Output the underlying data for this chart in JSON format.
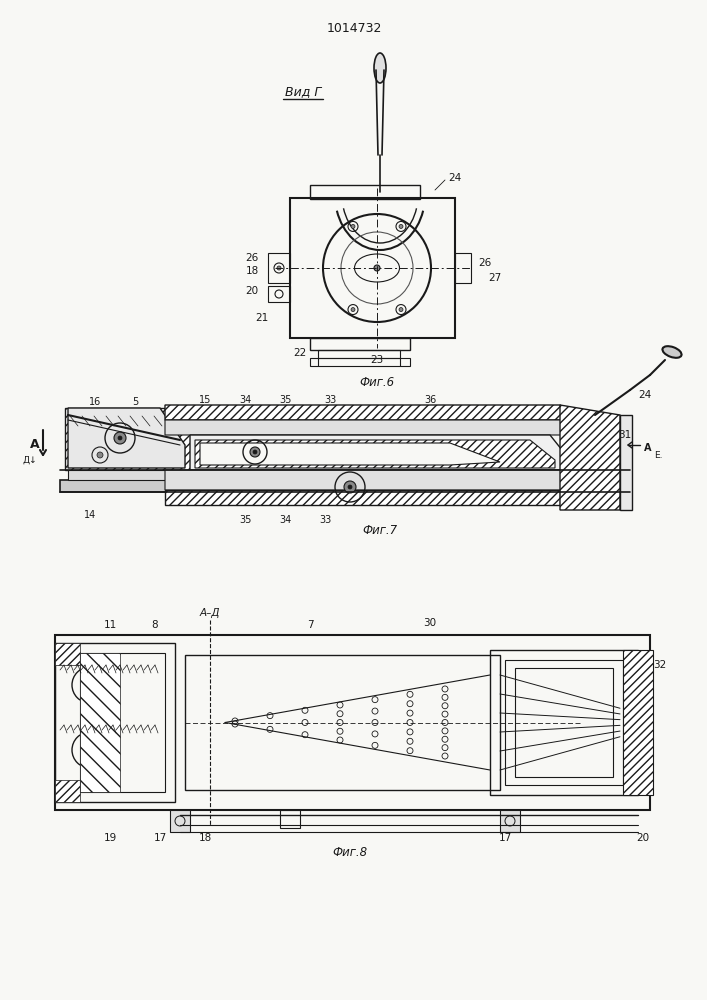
{
  "title": "1014732",
  "bg": "#f5f5f0",
  "lc": "#1a1a1a",
  "fig6_label": "Фиг.6",
  "fig7_label": "Фиг.7",
  "fig8_label": "Фиг.8",
  "vid_label": "Вид Г"
}
